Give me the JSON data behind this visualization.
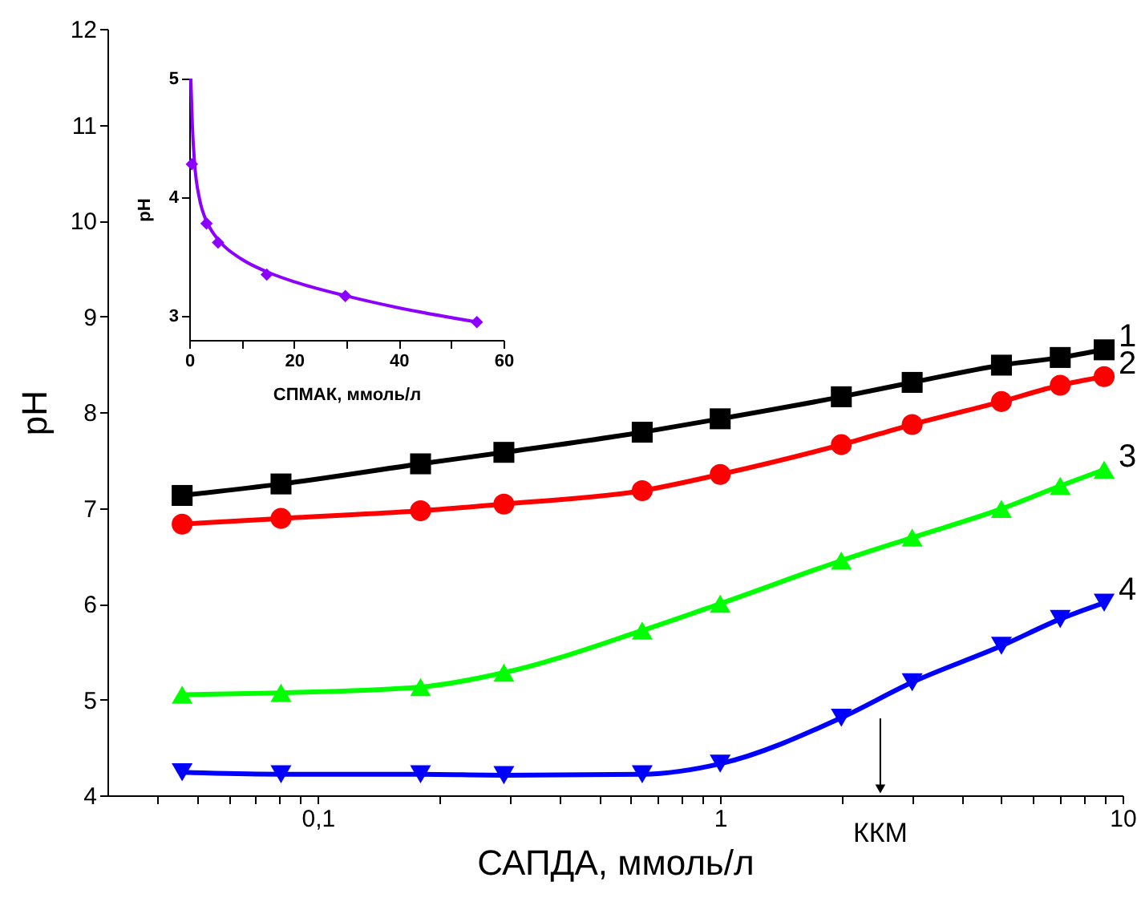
{
  "chart_data": [
    {
      "type": "line",
      "xlabel": "САПДА, ммоль/л",
      "ylabel": "pH",
      "log": "x",
      "line_style": "solid",
      "xlim": [
        0.03,
        10
      ],
      "ylim": [
        4,
        12
      ],
      "xticks": [
        {
          "value": 0.04,
          "label": null
        },
        {
          "value": 0.05,
          "label": null
        },
        {
          "value": 0.06,
          "label": null
        },
        {
          "value": 0.07,
          "label": null
        },
        {
          "value": 0.08,
          "label": null
        },
        {
          "value": 0.09,
          "label": null
        },
        {
          "value": 0.1,
          "label": "0,1"
        },
        {
          "value": 0.2,
          "label": null
        },
        {
          "value": 0.3,
          "label": null
        },
        {
          "value": 0.4,
          "label": null
        },
        {
          "value": 0.5,
          "label": null
        },
        {
          "value": 0.6,
          "label": null
        },
        {
          "value": 0.7,
          "label": null
        },
        {
          "value": 0.8,
          "label": null
        },
        {
          "value": 0.9,
          "label": null
        },
        1,
        {
          "value": 2,
          "label": null
        },
        {
          "value": 3,
          "label": null
        },
        {
          "value": 4,
          "label": null
        },
        {
          "value": 5,
          "label": null
        },
        {
          "value": 6,
          "label": null
        },
        {
          "value": 7,
          "label": null
        },
        {
          "value": 8,
          "label": null
        },
        {
          "value": 9,
          "label": null
        },
        10
      ],
      "yticks": [
        4,
        5,
        6,
        7,
        8,
        9,
        10,
        11,
        12
      ],
      "x": [
        0.046,
        0.081,
        0.18,
        0.29,
        0.64,
        1,
        2,
        3,
        5,
        7,
        9
      ],
      "series": [
        {
          "name": "1",
          "color": "#000000",
          "marker": "square",
          "values": [
            7.13,
            7.25,
            7.46,
            7.58,
            7.79,
            7.93,
            8.16,
            8.31,
            8.49,
            8.57,
            8.65
          ]
        },
        {
          "name": "2",
          "color": "#ff0000",
          "marker": "circle",
          "values": [
            6.83,
            6.89,
            6.97,
            7.04,
            7.18,
            7.35,
            7.66,
            7.87,
            8.11,
            8.28,
            8.37
          ]
        },
        {
          "name": "3",
          "color": "#00ff00",
          "marker": "triangle",
          "values": [
            5.05,
            5.07,
            5.13,
            5.28,
            5.72,
            6.0,
            6.45,
            6.69,
            6.99,
            7.23,
            7.4
          ]
        },
        {
          "name": "4",
          "color": "#0000ff",
          "marker": "triangle-down",
          "values": [
            4.24,
            4.22,
            4.22,
            4.21,
            4.22,
            4.33,
            4.81,
            5.18,
            5.56,
            5.84,
            6.01
          ]
        }
      ],
      "ref_lines": [
        {
          "axis": "x",
          "value": 2.5,
          "label": "ККМ",
          "color": "#000000"
        }
      ]
    },
    {
      "type": "scatter",
      "xlabel": "СПМАК, ммоль/л",
      "ylabel": "pH",
      "xlim": [
        0,
        60
      ],
      "ylim": [
        2.8,
        5
      ],
      "xticks": [
        0,
        {
          "value": 10,
          "label": null
        },
        20,
        {
          "value": 30,
          "label": null
        },
        40,
        {
          "value": 50,
          "label": null
        },
        60
      ],
      "yticks": [
        3,
        4,
        5
      ],
      "series": [
        {
          "type": "scatter",
          "color": "#8b00ff",
          "marker": "diamond",
          "x": [
            0.5,
            3.3,
            5.5,
            14.8,
            29.8,
            54.9
          ],
          "values": [
            4.28,
            3.78,
            3.62,
            3.35,
            3.17,
            2.95
          ]
        },
        {
          "type": "line",
          "color": "#8b00ff",
          "marker": "none",
          "line_style": "solid",
          "x": [
            0.3,
            0.6,
            1,
            2,
            3,
            4,
            6,
            10,
            15,
            20,
            30,
            40,
            55
          ],
          "values": [
            5.0,
            4.6,
            4.3,
            3.98,
            3.83,
            3.74,
            3.62,
            3.48,
            3.37,
            3.29,
            3.17,
            3.07,
            2.95
          ]
        }
      ]
    }
  ]
}
